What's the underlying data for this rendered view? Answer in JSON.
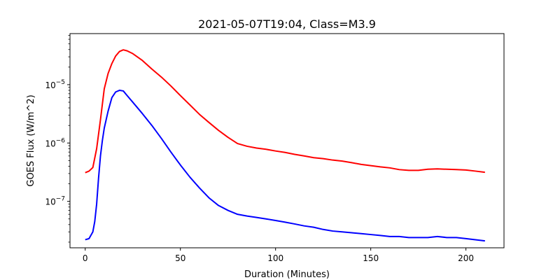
{
  "chart_data": {
    "type": "line",
    "title": "2021-05-07T19:04, Class=M3.9",
    "xlabel": "Duration (Minutes)",
    "ylabel": "GOES Flux (W/m^2)",
    "xlim": [
      -8,
      220
    ],
    "ylim": [
      1.6e-08,
      7.5e-05
    ],
    "yscale": "log",
    "grid": false,
    "legend": "none",
    "x_ticks": [
      0,
      50,
      100,
      150,
      200
    ],
    "y_ticks": [
      {
        "value": 1e-07,
        "base": "10",
        "exp": "−7"
      },
      {
        "value": 1e-06,
        "base": "10",
        "exp": "−6"
      },
      {
        "value": 1e-05,
        "base": "10",
        "exp": "−5"
      }
    ],
    "series": [
      {
        "color": "#ff0000",
        "x": [
          0,
          2,
          4,
          6,
          8,
          10,
          12,
          14,
          16,
          18,
          20,
          22,
          25,
          30,
          35,
          40,
          45,
          50,
          55,
          60,
          65,
          70,
          75,
          80,
          85,
          90,
          95,
          100,
          105,
          110,
          115,
          120,
          125,
          130,
          135,
          140,
          145,
          150,
          155,
          160,
          165,
          170,
          175,
          180,
          185,
          190,
          195,
          200,
          205,
          210
        ],
        "y": [
          3.1e-07,
          3.3e-07,
          3.8e-07,
          8e-07,
          2.5e-06,
          8.5e-06,
          1.55e-05,
          2.3e-05,
          3.1e-05,
          3.7e-05,
          3.95e-05,
          3.8e-05,
          3.4e-05,
          2.6e-05,
          1.85e-05,
          1.35e-05,
          9.5e-06,
          6.5e-06,
          4.5e-06,
          3.1e-06,
          2.25e-06,
          1.65e-06,
          1.25e-06,
          9.8e-07,
          8.8e-07,
          8.2e-07,
          7.8e-07,
          7.3e-07,
          6.9e-07,
          6.4e-07,
          6e-07,
          5.6e-07,
          5.4e-07,
          5.1e-07,
          4.9e-07,
          4.6e-07,
          4.3e-07,
          4.1e-07,
          3.9e-07,
          3.75e-07,
          3.5e-07,
          3.4e-07,
          3.4e-07,
          3.55e-07,
          3.6e-07,
          3.55e-07,
          3.5e-07,
          3.45e-07,
          3.3e-07,
          3.15e-07
        ]
      },
      {
        "color": "#0000ff",
        "x": [
          0,
          2,
          4,
          5,
          6,
          7,
          8,
          9,
          10,
          12,
          14,
          16,
          18,
          20,
          22,
          25,
          30,
          35,
          40,
          45,
          50,
          55,
          60,
          65,
          70,
          75,
          80,
          85,
          90,
          95,
          100,
          105,
          110,
          115,
          120,
          125,
          130,
          135,
          140,
          145,
          150,
          155,
          160,
          165,
          170,
          175,
          180,
          185,
          190,
          195,
          200,
          205,
          210
        ],
        "y": [
          2.2e-08,
          2.3e-08,
          3e-08,
          4.5e-08,
          9e-08,
          2.5e-07,
          6e-07,
          1.1e-06,
          1.8e-06,
          3.5e-06,
          6e-06,
          7.5e-06,
          8e-06,
          7.8e-06,
          6.5e-06,
          5e-06,
          3.2e-06,
          2e-06,
          1.2e-06,
          7e-07,
          4.2e-07,
          2.6e-07,
          1.7e-07,
          1.15e-07,
          8.5e-08,
          7e-08,
          6e-08,
          5.6e-08,
          5.3e-08,
          5e-08,
          4.7e-08,
          4.4e-08,
          4.1e-08,
          3.8e-08,
          3.6e-08,
          3.3e-08,
          3.1e-08,
          3e-08,
          2.9e-08,
          2.8e-08,
          2.7e-08,
          2.6e-08,
          2.5e-08,
          2.5e-08,
          2.4e-08,
          2.4e-08,
          2.4e-08,
          2.5e-08,
          2.4e-08,
          2.4e-08,
          2.3e-08,
          2.2e-08,
          2.1e-08
        ]
      }
    ]
  }
}
